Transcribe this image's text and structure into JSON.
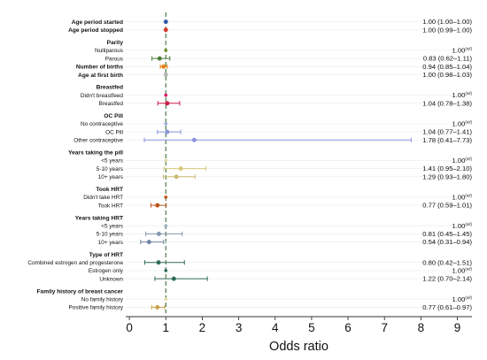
{
  "chart_data": {
    "type": "forest",
    "xlabel": "Odds ratio",
    "xlim": [
      -0.1,
      9.4
    ],
    "xticks": [
      0,
      1,
      2,
      3,
      4,
      5,
      6,
      7,
      8,
      9
    ],
    "reference_line": 1,
    "rows": [
      {
        "label": "Age period started",
        "bold": true,
        "or": 1.0,
        "lo": 1.0,
        "hi": 1.0,
        "text": "1.00 (1.00–1.00)",
        "color": "#2f5aa8"
      },
      {
        "label": "Age period stopped",
        "bold": true,
        "or": 1.0,
        "lo": 0.99,
        "hi": 1.0,
        "text": "1.00 (0.99–1.00)",
        "color": "#d23b2a"
      },
      {
        "gap": true
      },
      {
        "label": "Parity",
        "header": true
      },
      {
        "label": "Nulliparous",
        "or": 1.0,
        "lo": 1.0,
        "hi": 1.0,
        "text": "1.00",
        "ref": true,
        "color": "#6b8e23"
      },
      {
        "label": "Parous",
        "or": 0.83,
        "lo": 0.62,
        "hi": 1.11,
        "text": "0.83 (0.62–1.11)",
        "color": "#4e7a35"
      },
      {
        "label": "Number of births",
        "bold": true,
        "or": 0.94,
        "lo": 0.85,
        "hi": 1.04,
        "text": "0.94 (0.85–1.04)",
        "color": "#e8821a"
      },
      {
        "label": "Age at first birth",
        "bold": true,
        "or": 1.0,
        "lo": 0.98,
        "hi": 1.03,
        "text": "1.00 (0.98–1.03)",
        "color": "#b8b8b8"
      },
      {
        "gap": true
      },
      {
        "label": "Breastfed",
        "header": true
      },
      {
        "label": "Didn't breastfeed",
        "or": 1.0,
        "lo": 1.0,
        "hi": 1.0,
        "text": "1.00",
        "ref": true,
        "color": "#e0115f"
      },
      {
        "label": "Breastfed",
        "or": 1.04,
        "lo": 0.78,
        "hi": 1.38,
        "text": "1.04 (0.78–1.38)",
        "color": "#d11a4a"
      },
      {
        "gap": true
      },
      {
        "label": "OC Pill",
        "header": true
      },
      {
        "label": "No contraceptive",
        "or": 1.0,
        "lo": 1.0,
        "hi": 1.0,
        "text": "1.00",
        "ref": true,
        "color": "#9aa7e0"
      },
      {
        "label": "OC Pill",
        "or": 1.04,
        "lo": 0.77,
        "hi": 1.41,
        "text": "1.04 (0.77–1.41)",
        "color": "#8b95d8"
      },
      {
        "label": "Other contraceptive",
        "or": 1.78,
        "lo": 0.41,
        "hi": 7.73,
        "text": "1.78 (0.41–7.73)",
        "color": "#8c8fe0"
      },
      {
        "gap": true
      },
      {
        "label": "Years taking the pill",
        "header": true
      },
      {
        "label": "<5 years",
        "or": 1.0,
        "lo": 1.0,
        "hi": 1.0,
        "text": "1.00",
        "ref": true,
        "color": "#e4dca0"
      },
      {
        "label": "5-10 years",
        "or": 1.41,
        "lo": 0.95,
        "hi": 2.1,
        "text": "1.41 (0.95–2.10)",
        "color": "#d8c878"
      },
      {
        "label": "10+ years",
        "or": 1.29,
        "lo": 0.93,
        "hi": 1.8,
        "text": "1.29 (0.93–1.80)",
        "color": "#c9b870"
      },
      {
        "gap": true
      },
      {
        "label": "Took HRT",
        "header": true
      },
      {
        "label": "Didn't take HRT",
        "or": 1.0,
        "lo": 1.0,
        "hi": 1.0,
        "text": "1.00",
        "ref": true,
        "color": "#c0521a"
      },
      {
        "label": "Took HRT",
        "or": 0.77,
        "lo": 0.59,
        "hi": 1.01,
        "text": "0.77 (0.59–1.01)",
        "color": "#c0521a"
      },
      {
        "gap": true
      },
      {
        "label": "Years taking HRT",
        "header": true
      },
      {
        "label": "<5 years",
        "or": 1.0,
        "lo": 1.0,
        "hi": 1.0,
        "text": "1.00",
        "ref": true,
        "color": "#9aaec0"
      },
      {
        "label": "5-10 years",
        "or": 0.81,
        "lo": 0.45,
        "hi": 1.45,
        "text": "0.81 (0.45–1.45)",
        "color": "#7f97b0"
      },
      {
        "label": "10+ years",
        "or": 0.54,
        "lo": 0.31,
        "hi": 0.94,
        "text": "0.54 (0.31–0.94)",
        "color": "#6f84a4"
      },
      {
        "gap": true
      },
      {
        "label": "Type of HRT",
        "header": true
      },
      {
        "label": "Combined estrogen and progesterone",
        "or": 0.8,
        "lo": 0.42,
        "hi": 1.51,
        "text": "0.80 (0.42–1.51)",
        "color": "#2e6b5a"
      },
      {
        "label": "Estrogen only",
        "or": 1.0,
        "lo": 1.0,
        "hi": 1.0,
        "text": "1.00",
        "ref": true,
        "color": "#2e6b5a"
      },
      {
        "label": "Unknown",
        "or": 1.22,
        "lo": 0.7,
        "hi": 2.14,
        "text": "1.22 (0.70–2.14)",
        "color": "#2e6b5a"
      },
      {
        "gap": true
      },
      {
        "label": "Family history of breast cancer",
        "header": true
      },
      {
        "label": "No family history",
        "or": 1.0,
        "lo": 1.0,
        "hi": 1.0,
        "text": "1.00",
        "ref": true,
        "color": "#e4dca0"
      },
      {
        "label": "Positive family history",
        "or": 0.77,
        "lo": 0.61,
        "hi": 0.97,
        "text": "0.77 (0.61–0.97)",
        "color": "#c9a24a"
      }
    ],
    "ref_marker": "(ref)"
  }
}
